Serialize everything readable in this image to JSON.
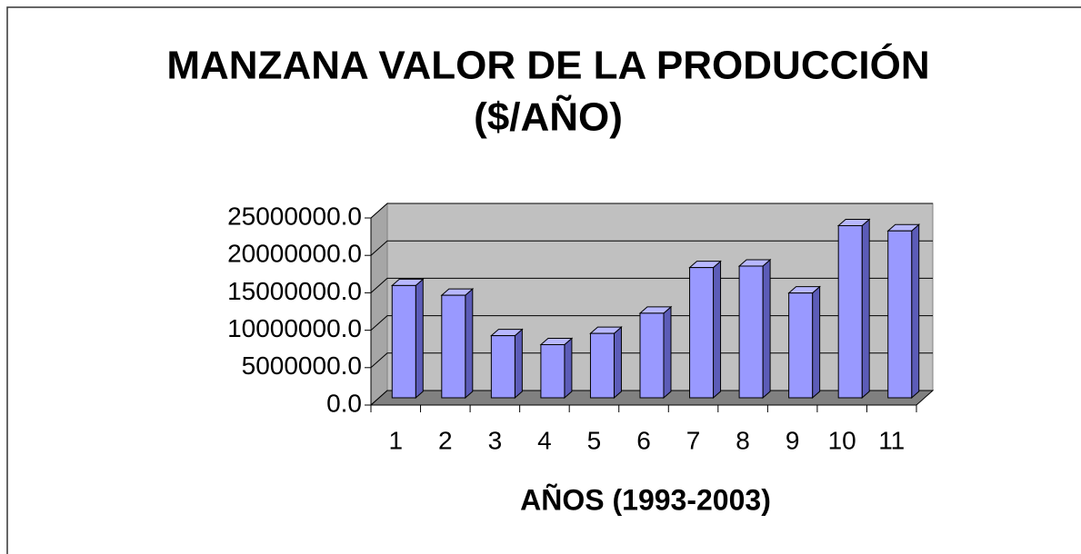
{
  "chart_data": {
    "type": "bar3d",
    "title": [
      "MANZANA VALOR DE LA PRODUCCIÓN",
      "($/AÑO)"
    ],
    "x_label": "AÑOS (1993-2003)",
    "categories": [
      "1",
      "2",
      "3",
      "4",
      "5",
      "6",
      "7",
      "8",
      "9",
      "10",
      "11"
    ],
    "values": [
      15000000,
      13700000,
      8300000,
      7100000,
      8600000,
      11300000,
      17400000,
      17600000,
      14000000,
      23000000,
      22300000
    ],
    "color": "#9999ff",
    "ylim": [
      0,
      25000000
    ],
    "yticks": [
      {
        "value": 0,
        "label": "0.0"
      },
      {
        "value": 5000000,
        "label": "5000000.0"
      },
      {
        "value": 10000000,
        "label": "10000000.0"
      },
      {
        "value": 15000000,
        "label": "15000000.0"
      },
      {
        "value": 20000000,
        "label": "20000000.0"
      },
      {
        "value": 25000000,
        "label": "25000000.0"
      }
    ],
    "grid": true
  }
}
